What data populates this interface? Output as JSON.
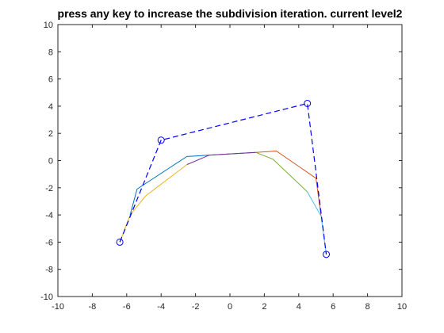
{
  "chart_data": {
    "type": "line",
    "title": "press any key to increase the subdivision iteration. current level2",
    "xlabel": "",
    "ylabel": "",
    "xlim": [
      -10,
      10
    ],
    "ylim": [
      -10,
      10
    ],
    "xticks": [
      -10,
      -8,
      -6,
      -4,
      -2,
      0,
      2,
      4,
      6,
      8,
      10
    ],
    "yticks": [
      -10,
      -8,
      -6,
      -4,
      -2,
      0,
      2,
      4,
      6,
      8,
      10
    ],
    "grid": false,
    "legend": "none",
    "control_polygon": {
      "style": "dashed",
      "marker": "circle",
      "color": "#0000ff",
      "x": [
        -6.4,
        -4.0,
        4.5,
        5.6
      ],
      "y": [
        -6.0,
        1.5,
        4.2,
        -6.9
      ]
    },
    "series": [
      {
        "color": "#0072bd",
        "x": [
          -5.4,
          -2.5,
          1.5
        ],
        "y": [
          -2.1,
          0.3,
          0.6
        ]
      },
      {
        "color": "#d95319",
        "x": [
          1.5,
          2.7,
          5.0,
          5.3
        ],
        "y": [
          0.6,
          0.7,
          -1.3,
          -4.1
        ]
      },
      {
        "color": "#edb120",
        "x": [
          -6.4,
          -5.8,
          -4.9,
          -2.5
        ],
        "y": [
          -6.0,
          -4.0,
          -2.6,
          -0.3
        ]
      },
      {
        "color": "#7e2f8e",
        "x": [
          -2.5,
          -1.2,
          1.5
        ],
        "y": [
          -0.3,
          0.4,
          0.6
        ]
      },
      {
        "color": "#77ac30",
        "x": [
          1.5,
          2.5,
          4.5
        ],
        "y": [
          0.6,
          0.1,
          -2.3
        ]
      },
      {
        "color": "#4dbeee",
        "x": [
          4.5,
          5.3,
          5.6
        ],
        "y": [
          -2.3,
          -4.1,
          -6.9
        ]
      },
      {
        "color": "#0072bd",
        "x": [
          -5.8,
          -5.4
        ],
        "y": [
          -4.0,
          -2.1
        ]
      }
    ]
  }
}
